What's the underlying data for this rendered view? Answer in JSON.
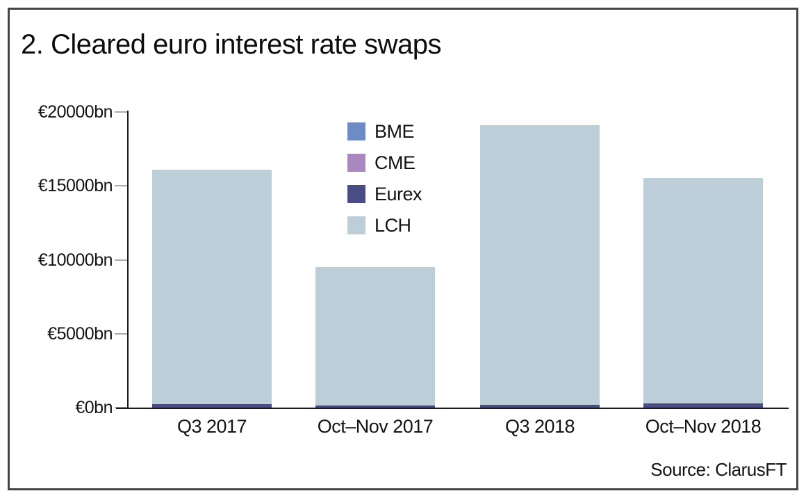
{
  "title": "2. Cleared euro interest rate swaps",
  "source": "Source: ClarusFT",
  "frame": {
    "border_color": "#454545"
  },
  "chart_data": {
    "type": "bar",
    "stacked": true,
    "title": "2. Cleared euro interest rate swaps",
    "categories": [
      "Q3 2017",
      "Oct–Nov 2017",
      "Q3 2018",
      "Oct–Nov 2018"
    ],
    "series": [
      {
        "name": "BME",
        "color": "#6d8cc7",
        "values": [
          0,
          0,
          0,
          0
        ]
      },
      {
        "name": "CME",
        "color": "#a987bf",
        "values": [
          0,
          0,
          0,
          0
        ]
      },
      {
        "name": "Eurex",
        "color": "#4a4c85",
        "values": [
          250,
          130,
          200,
          300
        ]
      },
      {
        "name": "LCH",
        "color": "#bccfd9",
        "values": [
          15850,
          9370,
          18900,
          15250
        ]
      }
    ],
    "totals": [
      16100,
      9500,
      19100,
      15550
    ],
    "unit": "€bn",
    "y_ticks": [
      {
        "label": "€0bn",
        "value": 0
      },
      {
        "label": "€5000bn",
        "value": 5000
      },
      {
        "label": "€10000bn",
        "value": 10000
      },
      {
        "label": "€15000bn",
        "value": 15000
      },
      {
        "label": "€20000bn",
        "value": 20000
      }
    ],
    "ylim": [
      0,
      20000
    ],
    "xlabel": "",
    "ylabel": "",
    "grid": false,
    "legend_position": "top-center-inside",
    "axis_color": "#1a1a1a",
    "tick_color": "#ababab"
  }
}
